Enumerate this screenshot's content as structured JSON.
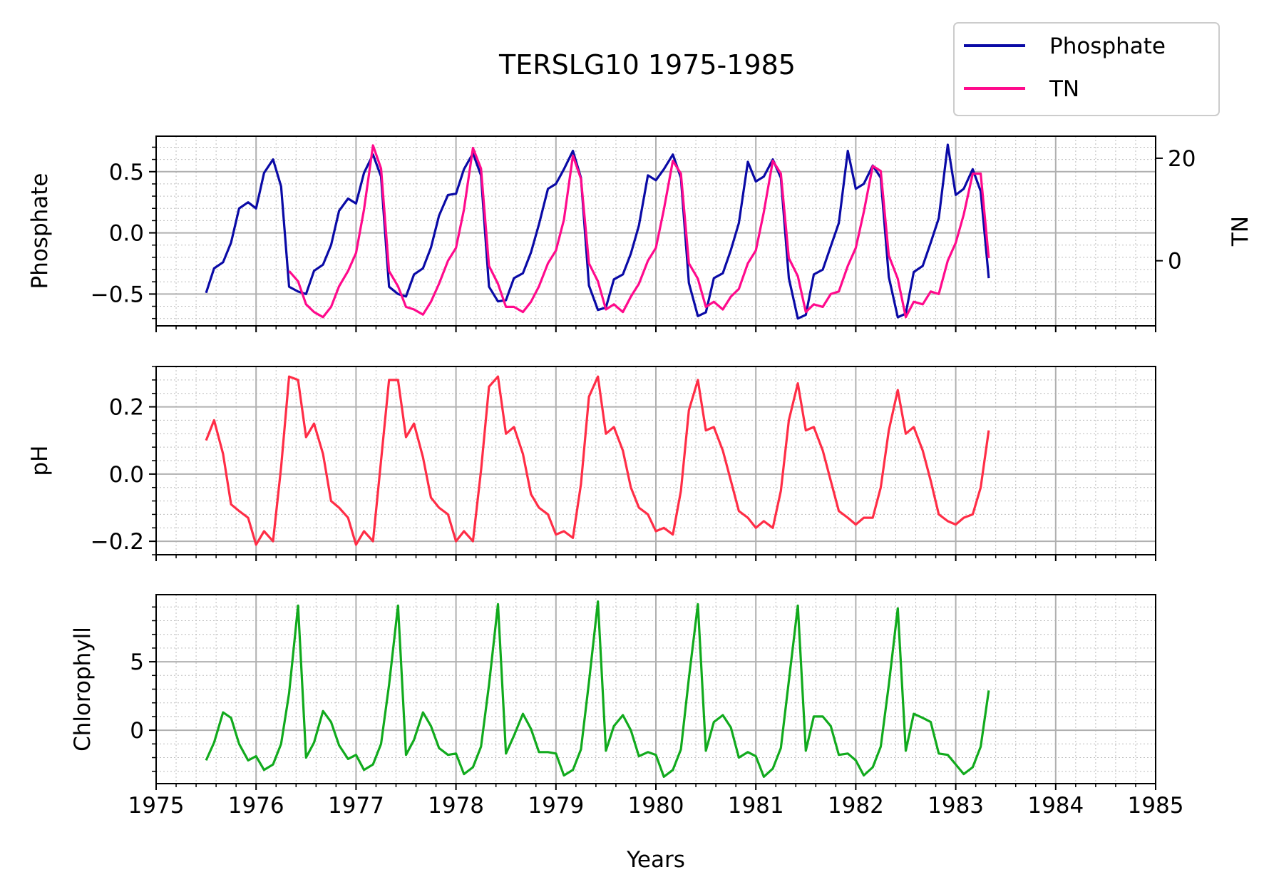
{
  "chart_data": {
    "type": "line",
    "title": "TERSLG10 1975-1985",
    "xlabel": "Years",
    "xlim": [
      1975,
      1985
    ],
    "x_ticks": [
      "1975",
      "1976",
      "1977",
      "1978",
      "1979",
      "1980",
      "1981",
      "1982",
      "1983",
      "1984",
      "1985"
    ],
    "grid": true,
    "legend": {
      "placement": "top-right",
      "entries": [
        "Phosphate",
        "TN"
      ]
    },
    "colors": {
      "phosphate": "#0a0aa6",
      "tn": "#ff0a8c",
      "ph": "#ff2d46",
      "chlorophyll": "#11aa1d"
    },
    "panels": [
      {
        "ylabel": "Phosphate",
        "ylim": [
          -0.76,
          0.79
        ],
        "y_ticks": [
          -0.5,
          0.0,
          0.5
        ],
        "y_tick_labels": [
          "−0.5",
          "0.0",
          "0.5"
        ],
        "series": [
          {
            "name": "Phosphate",
            "axis": "left",
            "x": [
              1975.5,
              1975.58,
              1975.67,
              1975.75,
              1975.83,
              1975.92,
              1976.0,
              1976.08,
              1976.17,
              1976.25,
              1976.33,
              1976.42,
              1976.5,
              1976.58,
              1976.67,
              1976.75,
              1976.83,
              1976.92,
              1977.0,
              1977.08,
              1977.17,
              1977.25,
              1977.33,
              1977.42,
              1977.5,
              1977.58,
              1977.67,
              1977.75,
              1977.83,
              1977.92,
              1978.0,
              1978.08,
              1978.17,
              1978.25,
              1978.33,
              1978.42,
              1978.5,
              1978.58,
              1978.67,
              1978.75,
              1978.83,
              1978.92,
              1979.0,
              1979.08,
              1979.17,
              1979.25,
              1979.33,
              1979.42,
              1979.5,
              1979.58,
              1979.67,
              1979.75,
              1979.83,
              1979.92,
              1980.0,
              1980.08,
              1980.17,
              1980.25,
              1980.33,
              1980.42,
              1980.5,
              1980.58,
              1980.67,
              1980.75,
              1980.83,
              1980.92,
              1981.0,
              1981.08,
              1981.17,
              1981.25,
              1981.33,
              1981.42,
              1981.5,
              1981.58,
              1981.67,
              1981.75,
              1981.83,
              1981.92,
              1982.0,
              1982.08,
              1982.17,
              1982.25,
              1982.33,
              1982.42,
              1982.5,
              1982.58,
              1982.67,
              1982.75,
              1982.83,
              1982.92,
              1983.0,
              1983.08,
              1983.17,
              1983.25,
              1983.33
            ],
            "values": [
              -0.49,
              -0.29,
              -0.24,
              -0.08,
              0.2,
              0.25,
              0.2,
              0.49,
              0.6,
              0.38,
              -0.44,
              -0.48,
              -0.5,
              -0.31,
              -0.26,
              -0.1,
              0.18,
              0.28,
              0.24,
              0.49,
              0.64,
              0.46,
              -0.44,
              -0.5,
              -0.52,
              -0.34,
              -0.29,
              -0.12,
              0.14,
              0.31,
              0.32,
              0.52,
              0.65,
              0.47,
              -0.44,
              -0.56,
              -0.55,
              -0.37,
              -0.33,
              -0.16,
              0.07,
              0.36,
              0.4,
              0.52,
              0.67,
              0.45,
              -0.43,
              -0.63,
              -0.61,
              -0.38,
              -0.34,
              -0.17,
              0.06,
              0.47,
              0.43,
              0.52,
              0.64,
              0.45,
              -0.41,
              -0.68,
              -0.65,
              -0.37,
              -0.33,
              -0.14,
              0.08,
              0.58,
              0.42,
              0.46,
              0.6,
              0.45,
              -0.37,
              -0.7,
              -0.67,
              -0.34,
              -0.3,
              -0.11,
              0.08,
              0.67,
              0.36,
              0.4,
              0.55,
              0.45,
              -0.36,
              -0.69,
              -0.66,
              -0.32,
              -0.27,
              -0.08,
              0.12,
              0.72,
              0.31,
              0.36,
              0.52,
              0.34,
              -0.37
            ]
          },
          {
            "name": "TN",
            "axis": "right",
            "ylim": [
              -12.7,
              24.3
            ],
            "y_ticks": [
              0,
              20
            ],
            "ylabel": "TN",
            "x": [
              1976.33,
              1976.42,
              1976.5,
              1976.58,
              1976.67,
              1976.75,
              1976.83,
              1976.92,
              1977.0,
              1977.08,
              1977.17,
              1977.25,
              1977.33,
              1977.42,
              1977.5,
              1977.58,
              1977.67,
              1977.75,
              1977.83,
              1977.92,
              1978.0,
              1978.08,
              1978.17,
              1978.25,
              1978.33,
              1978.42,
              1978.5,
              1978.58,
              1978.67,
              1978.75,
              1978.83,
              1978.92,
              1979.0,
              1979.08,
              1979.17,
              1979.25,
              1979.33,
              1979.42,
              1979.5,
              1979.58,
              1979.67,
              1979.75,
              1979.83,
              1979.92,
              1980.0,
              1980.08,
              1980.17,
              1980.25,
              1980.33,
              1980.42,
              1980.5,
              1980.58,
              1980.67,
              1980.75,
              1980.83,
              1980.92,
              1981.0,
              1981.08,
              1981.17,
              1981.25,
              1981.33,
              1981.42,
              1981.5,
              1981.58,
              1981.67,
              1981.75,
              1981.83,
              1981.92,
              1982.0,
              1982.08,
              1982.17,
              1982.25,
              1982.33,
              1982.42,
              1982.5,
              1982.58,
              1982.67,
              1982.75,
              1982.83,
              1982.92,
              1983.0,
              1983.08,
              1983.17,
              1983.25,
              1983.33
            ],
            "values": [
              -2.0,
              -4.0,
              -8.5,
              -10.0,
              -11.0,
              -9.0,
              -5.0,
              -2.0,
              1.5,
              10.0,
              22.5,
              18.0,
              -2.0,
              -5.0,
              -9.0,
              -9.5,
              -10.5,
              -8.0,
              -4.5,
              0.0,
              2.5,
              10.0,
              22.0,
              18.0,
              -1.0,
              -4.5,
              -9.0,
              -9.0,
              -10.0,
              -8.0,
              -5.0,
              -0.5,
              2.0,
              8.0,
              20.5,
              16.0,
              -0.5,
              -4.0,
              -9.5,
              -8.5,
              -10.0,
              -7.0,
              -4.5,
              0.0,
              2.5,
              10.0,
              19.5,
              17.0,
              -0.5,
              -3.5,
              -9.0,
              -8.0,
              -9.5,
              -7.0,
              -5.5,
              -0.5,
              2.0,
              9.5,
              19.5,
              17.0,
              0.5,
              -3.0,
              -10.0,
              -8.5,
              -9.0,
              -6.5,
              -6.0,
              -1.0,
              2.5,
              9.5,
              18.5,
              17.5,
              1.0,
              -3.5,
              -11.0,
              -8.0,
              -8.5,
              -6.0,
              -6.5,
              0.0,
              3.5,
              9.0,
              17.0,
              17.0,
              0.5
            ]
          }
        ]
      },
      {
        "ylabel": "pH",
        "ylim": [
          -0.24,
          0.32
        ],
        "y_ticks": [
          -0.2,
          0.0,
          0.2
        ],
        "y_tick_labels": [
          "−0.2",
          "0.0",
          "0.2"
        ],
        "series": [
          {
            "name": "pH",
            "x": [
              1975.5,
              1975.58,
              1975.67,
              1975.75,
              1975.83,
              1975.92,
              1976.0,
              1976.08,
              1976.17,
              1976.25,
              1976.33,
              1976.42,
              1976.5,
              1976.58,
              1976.67,
              1976.75,
              1976.83,
              1976.92,
              1977.0,
              1977.08,
              1977.17,
              1977.25,
              1977.33,
              1977.42,
              1977.5,
              1977.58,
              1977.67,
              1977.75,
              1977.83,
              1977.92,
              1978.0,
              1978.08,
              1978.17,
              1978.25,
              1978.33,
              1978.42,
              1978.5,
              1978.58,
              1978.67,
              1978.75,
              1978.83,
              1978.92,
              1979.0,
              1979.08,
              1979.17,
              1979.25,
              1979.33,
              1979.42,
              1979.5,
              1979.58,
              1979.67,
              1979.75,
              1979.83,
              1979.92,
              1980.0,
              1980.08,
              1980.17,
              1980.25,
              1980.33,
              1980.42,
              1980.5,
              1980.58,
              1980.67,
              1980.75,
              1980.83,
              1980.92,
              1981.0,
              1981.08,
              1981.17,
              1981.25,
              1981.33,
              1981.42,
              1981.5,
              1981.58,
              1981.67,
              1981.75,
              1981.83,
              1981.92,
              1982.0,
              1982.08,
              1982.17,
              1982.25,
              1982.33,
              1982.42,
              1982.5,
              1982.58,
              1982.67,
              1982.75,
              1982.83,
              1982.92,
              1983.0,
              1983.08,
              1983.17,
              1983.25,
              1983.33
            ],
            "values": [
              0.1,
              0.16,
              0.06,
              -0.09,
              -0.11,
              -0.13,
              -0.21,
              -0.17,
              -0.2,
              0.02,
              0.29,
              0.28,
              0.11,
              0.15,
              0.06,
              -0.08,
              -0.1,
              -0.13,
              -0.21,
              -0.17,
              -0.2,
              0.04,
              0.28,
              0.28,
              0.11,
              0.15,
              0.05,
              -0.07,
              -0.1,
              -0.12,
              -0.2,
              -0.17,
              -0.2,
              0.01,
              0.26,
              0.29,
              0.12,
              0.14,
              0.06,
              -0.06,
              -0.1,
              -0.12,
              -0.18,
              -0.17,
              -0.19,
              -0.03,
              0.23,
              0.29,
              0.12,
              0.14,
              0.07,
              -0.04,
              -0.1,
              -0.12,
              -0.17,
              -0.16,
              -0.18,
              -0.05,
              0.19,
              0.28,
              0.13,
              0.14,
              0.07,
              -0.02,
              -0.11,
              -0.13,
              -0.16,
              -0.14,
              -0.16,
              -0.05,
              0.16,
              0.27,
              0.13,
              0.14,
              0.07,
              -0.02,
              -0.11,
              -0.13,
              -0.15,
              -0.13,
              -0.13,
              -0.04,
              0.13,
              0.25,
              0.12,
              0.14,
              0.07,
              -0.02,
              -0.12,
              -0.14,
              -0.15,
              -0.13,
              -0.12,
              -0.04,
              0.13
            ]
          }
        ]
      },
      {
        "ylabel": "Chlorophyll",
        "ylim": [
          -3.9,
          9.9
        ],
        "y_ticks": [
          0,
          5
        ],
        "y_tick_labels": [
          "0",
          "5"
        ],
        "series": [
          {
            "name": "Chlorophyll",
            "x": [
              1975.5,
              1975.58,
              1975.67,
              1975.75,
              1975.83,
              1975.92,
              1976.0,
              1976.08,
              1976.17,
              1976.25,
              1976.33,
              1976.42,
              1976.5,
              1976.58,
              1976.67,
              1976.75,
              1976.83,
              1976.92,
              1977.0,
              1977.08,
              1977.17,
              1977.25,
              1977.33,
              1977.42,
              1977.5,
              1977.58,
              1977.67,
              1977.75,
              1977.83,
              1977.92,
              1978.0,
              1978.08,
              1978.17,
              1978.25,
              1978.33,
              1978.42,
              1978.5,
              1978.58,
              1978.67,
              1978.75,
              1978.83,
              1978.92,
              1979.0,
              1979.08,
              1979.17,
              1979.25,
              1979.33,
              1979.42,
              1979.5,
              1979.58,
              1979.67,
              1979.75,
              1979.83,
              1979.92,
              1980.0,
              1980.08,
              1980.17,
              1980.25,
              1980.33,
              1980.42,
              1980.5,
              1980.58,
              1980.67,
              1980.75,
              1980.83,
              1980.92,
              1981.0,
              1981.08,
              1981.17,
              1981.25,
              1981.33,
              1981.42,
              1981.5,
              1981.58,
              1981.67,
              1981.75,
              1981.83,
              1981.92,
              1982.0,
              1982.08,
              1982.17,
              1982.25,
              1982.33,
              1982.42,
              1982.5,
              1982.58,
              1982.67,
              1982.75,
              1982.83,
              1982.92,
              1983.0,
              1983.08,
              1983.17,
              1983.25,
              1983.33
            ],
            "values": [
              -2.2,
              -0.9,
              1.3,
              0.9,
              -1.0,
              -2.2,
              -1.9,
              -2.9,
              -2.5,
              -1.0,
              2.7,
              9.1,
              -2.0,
              -0.9,
              1.4,
              0.6,
              -1.1,
              -2.1,
              -1.8,
              -2.9,
              -2.5,
              -1.0,
              3.3,
              9.1,
              -1.8,
              -0.7,
              1.3,
              0.3,
              -1.3,
              -1.8,
              -1.7,
              -3.2,
              -2.7,
              -1.2,
              3.3,
              9.2,
              -1.7,
              -0.4,
              1.2,
              0.1,
              -1.6,
              -1.6,
              -1.7,
              -3.3,
              -2.9,
              -1.4,
              3.5,
              9.4,
              -1.5,
              0.3,
              1.1,
              0.0,
              -1.9,
              -1.6,
              -1.8,
              -3.4,
              -2.9,
              -1.4,
              3.8,
              9.2,
              -1.5,
              0.6,
              1.1,
              0.2,
              -2.0,
              -1.6,
              -1.9,
              -3.4,
              -2.8,
              -1.3,
              3.6,
              9.1,
              -1.5,
              1.0,
              1.0,
              0.3,
              -1.8,
              -1.7,
              -2.2,
              -3.3,
              -2.7,
              -1.2,
              3.3,
              8.9,
              -1.5,
              1.2,
              0.9,
              0.6,
              -1.7,
              -1.8,
              -2.5,
              -3.2,
              -2.7,
              -1.2,
              2.9
            ]
          }
        ]
      }
    ]
  }
}
